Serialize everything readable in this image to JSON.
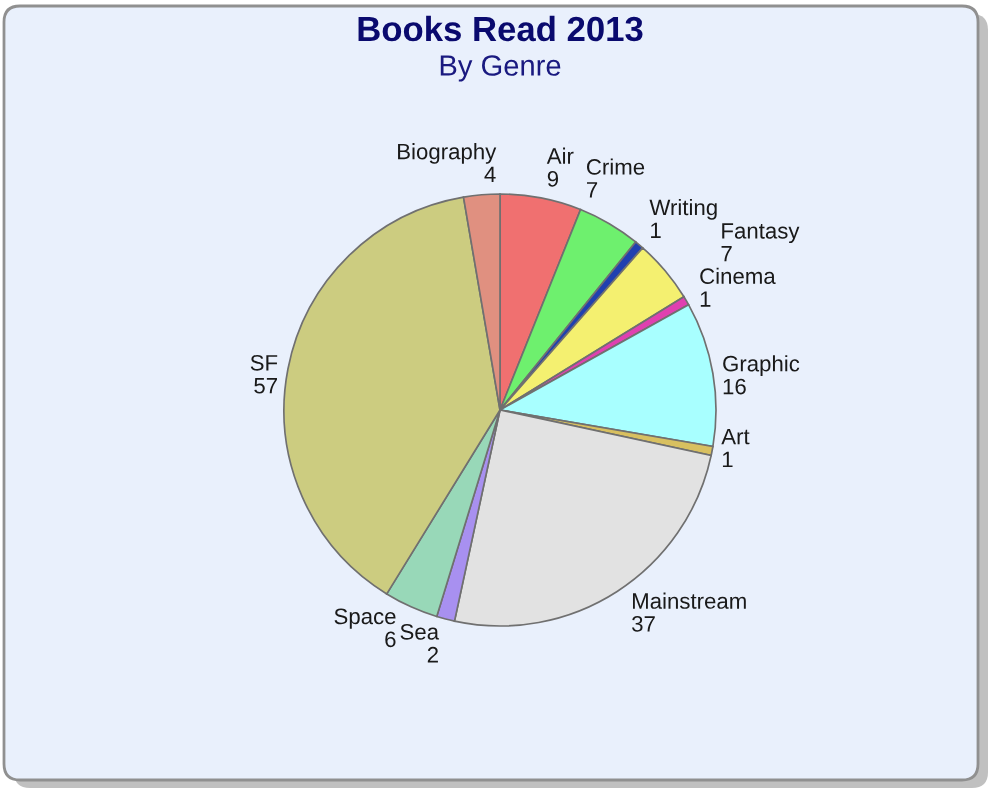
{
  "chart_data": {
    "type": "pie",
    "title": "Books Read 2013",
    "subtitle": "By Genre",
    "categories": [
      "Air",
      "Crime",
      "Writing",
      "Fantasy",
      "Cinema",
      "Graphic",
      "Art",
      "Mainstream",
      "Sea",
      "Space",
      "SF",
      "Biography"
    ],
    "values": [
      9,
      7,
      1,
      7,
      1,
      16,
      1,
      37,
      2,
      6,
      57,
      4
    ],
    "colors": [
      "#f07070",
      "#6ef06e",
      "#2040b0",
      "#f4f070",
      "#e040b0",
      "#a8ffff",
      "#d8c060",
      "#e2e2e2",
      "#a890f0",
      "#98d8b8",
      "#cccc80",
      "#e09080"
    ],
    "data_labels": true,
    "legend": false
  }
}
